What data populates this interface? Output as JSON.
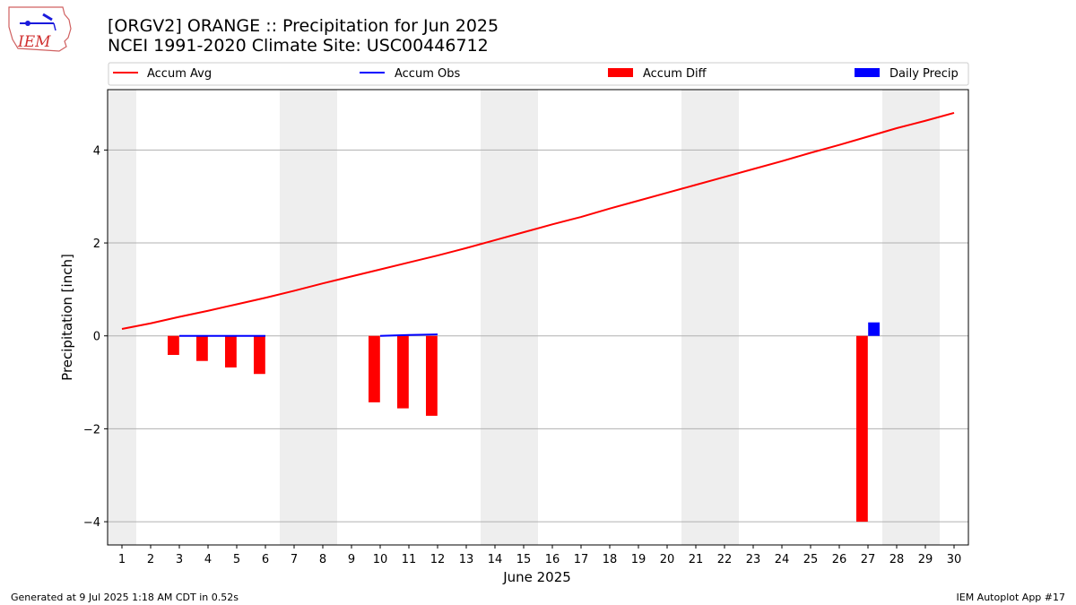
{
  "logo_text": "IEM",
  "title_line1": "[ORGV2] ORANGE :: Precipitation for Jun 2025",
  "title_line2": "NCEI 1991-2020 Climate Site: USC00446712",
  "footer_left": "Generated at 9 Jul 2025 1:18 AM CDT in 0.52s",
  "footer_right": "IEM Autoplot App #17",
  "colors": {
    "accum_avg": "#ff0000",
    "accum_obs": "#0000ff",
    "accum_diff": "#ff0000",
    "daily_precip": "#0000ff",
    "weekend_shade": "#eeeeee",
    "grid": "#b0b0b0"
  },
  "chart_data": {
    "type": "bar",
    "xlabel": "June 2025",
    "ylabel": "Precipitation [inch]",
    "ylim": [
      -4.5,
      5.3
    ],
    "xlim": [
      0.5,
      30.5
    ],
    "yticks": [
      -4,
      -2,
      0,
      2,
      4
    ],
    "ytick_labels": [
      "−4",
      "−2",
      "0",
      "2",
      "4"
    ],
    "xticks": [
      1,
      2,
      3,
      4,
      5,
      6,
      7,
      8,
      9,
      10,
      11,
      12,
      13,
      14,
      15,
      16,
      17,
      18,
      19,
      20,
      21,
      22,
      23,
      24,
      25,
      26,
      27,
      28,
      29,
      30
    ],
    "grid": "horizontal",
    "legend_position": "top",
    "legend": [
      "Accum Avg",
      "Accum Obs",
      "Accum Diff",
      "Daily Precip"
    ],
    "weekends": [
      [
        0.5,
        1.5
      ],
      [
        6.5,
        8.5
      ],
      [
        13.5,
        15.5
      ],
      [
        20.5,
        22.5
      ],
      [
        27.5,
        29.5
      ]
    ],
    "accum_avg": {
      "name": "Accum Avg",
      "x": [
        1,
        2,
        3,
        4,
        5,
        6,
        7,
        8,
        9,
        10,
        11,
        12,
        13,
        14,
        15,
        16,
        17,
        18,
        19,
        20,
        21,
        22,
        23,
        24,
        25,
        26,
        27,
        28,
        29,
        30
      ],
      "y": [
        0.15,
        0.27,
        0.41,
        0.54,
        0.68,
        0.82,
        0.97,
        1.13,
        1.28,
        1.43,
        1.58,
        1.73,
        1.89,
        2.06,
        2.23,
        2.4,
        2.56,
        2.74,
        2.91,
        3.08,
        3.25,
        3.42,
        3.59,
        3.76,
        3.94,
        4.11,
        4.29,
        4.47,
        4.63,
        4.8
      ]
    },
    "accum_obs": {
      "name": "Accum Obs",
      "segments": [
        {
          "x": [
            3,
            4,
            5,
            6
          ],
          "y": [
            0,
            0,
            0,
            0
          ]
        },
        {
          "x": [
            10,
            11,
            12
          ],
          "y": [
            0,
            0.02,
            0.03
          ]
        }
      ]
    },
    "accum_diff": {
      "name": "Accum Diff",
      "x": [
        3,
        4,
        5,
        6,
        10,
        11,
        12,
        27
      ],
      "y": [
        -0.41,
        -0.54,
        -0.68,
        -0.82,
        -1.43,
        -1.56,
        -1.72,
        -4.0
      ]
    },
    "daily_precip": {
      "name": "Daily Precip",
      "x": [
        27
      ],
      "y": [
        0.29
      ]
    }
  }
}
